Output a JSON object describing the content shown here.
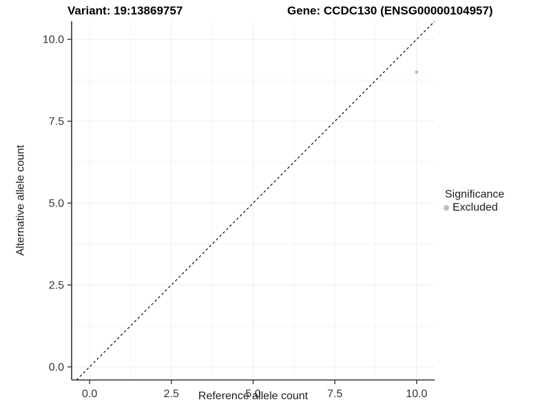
{
  "figure": {
    "title_left": "Variant: 19:13869757",
    "title_right": "Gene: CCDC130 (ENSG00000104957)"
  },
  "chart_data": {
    "type": "scatter",
    "title_left": "Variant: 19:13869757",
    "title_right": "Gene: CCDC130 (ENSG00000104957)",
    "xlabel": "Reference allele count",
    "ylabel": "Alternative allele count",
    "xlim": [
      -0.55,
      10.55
    ],
    "ylim": [
      -0.4,
      10.55
    ],
    "x_ticks": [
      0.0,
      2.5,
      5.0,
      7.5,
      10.0
    ],
    "y_ticks": [
      0.0,
      2.5,
      5.0,
      7.5,
      10.0
    ],
    "x_minor_ticks": [
      1.25,
      3.75,
      6.25,
      8.75
    ],
    "y_minor_ticks": [
      1.25,
      3.75,
      6.25,
      8.75
    ],
    "tick_decimals": 1,
    "grid": "major+minor",
    "series": [
      {
        "name": "Excluded",
        "color": "#bdbdbd",
        "point_radius": 2.5,
        "points": [
          {
            "x": 10,
            "y": 9
          }
        ]
      }
    ],
    "identity_line": {
      "type": "y=x",
      "style": "dashed",
      "color": "#000000"
    },
    "legend": {
      "title": "Significance",
      "position": "right",
      "entries": [
        {
          "label": "Excluded",
          "color": "#bdbdbd"
        }
      ]
    }
  },
  "colors": {
    "background": "#ffffff",
    "grid_major": "#ebebeb",
    "grid_minor": "#f5f5f5",
    "axis_line": "#333333",
    "tick_mark": "#333333",
    "tick_label": "#333333",
    "axis_title": "#1a1a1a",
    "title_text": "#000000",
    "identity_line": "#000000",
    "point": "#bdbdbd"
  }
}
